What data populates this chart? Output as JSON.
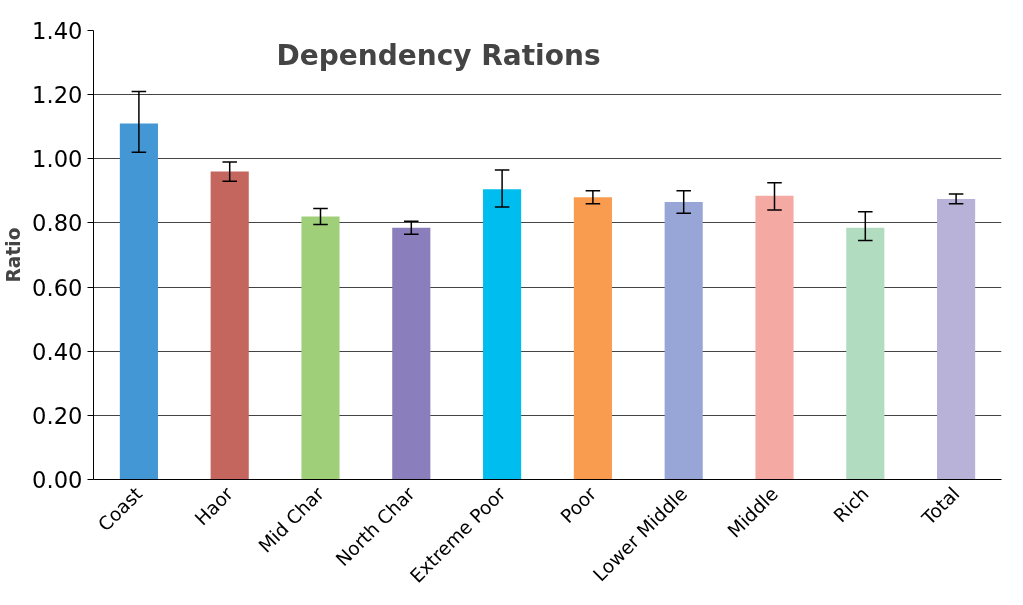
{
  "chart_data": {
    "type": "bar",
    "title": "Dependency Rations",
    "ylabel": "Ratio",
    "categories": [
      "Coast",
      "Haor",
      "Mid Char",
      "North Char",
      "Extreme Poor",
      "Poor",
      "Lower Middle",
      "Middle",
      "Rich",
      "Total"
    ],
    "values": [
      1.11,
      0.96,
      0.82,
      0.785,
      0.905,
      0.88,
      0.865,
      0.885,
      0.785,
      0.875
    ],
    "errors": [
      [
        1.02,
        1.21
      ],
      [
        0.93,
        0.99
      ],
      [
        0.795,
        0.845
      ],
      [
        0.765,
        0.805
      ],
      [
        0.85,
        0.965
      ],
      [
        0.86,
        0.9
      ],
      [
        0.83,
        0.9
      ],
      [
        0.84,
        0.925
      ],
      [
        0.745,
        0.835
      ],
      [
        0.86,
        0.89
      ]
    ],
    "colors": [
      "#4397d5",
      "#c4655e",
      "#9fcf78",
      "#8a7fbc",
      "#00bdf0",
      "#fa9c4f",
      "#97a6d6",
      "#f5a9a3",
      "#b2dcc0",
      "#b8b1d8"
    ],
    "ylim": [
      0,
      1.4
    ],
    "yticks": [
      {
        "value": 0,
        "label": "0.00"
      },
      {
        "value": 0.2,
        "label": "0.20"
      },
      {
        "value": 0.4,
        "label": "0.40"
      },
      {
        "value": 0.6,
        "label": "0.60"
      },
      {
        "value": 0.8,
        "label": "0.80"
      },
      {
        "value": 1.0,
        "label": "1.00"
      },
      {
        "value": 1.2,
        "label": "1.20"
      },
      {
        "value": 1.4,
        "label": "1.40"
      }
    ],
    "grid": "y"
  }
}
